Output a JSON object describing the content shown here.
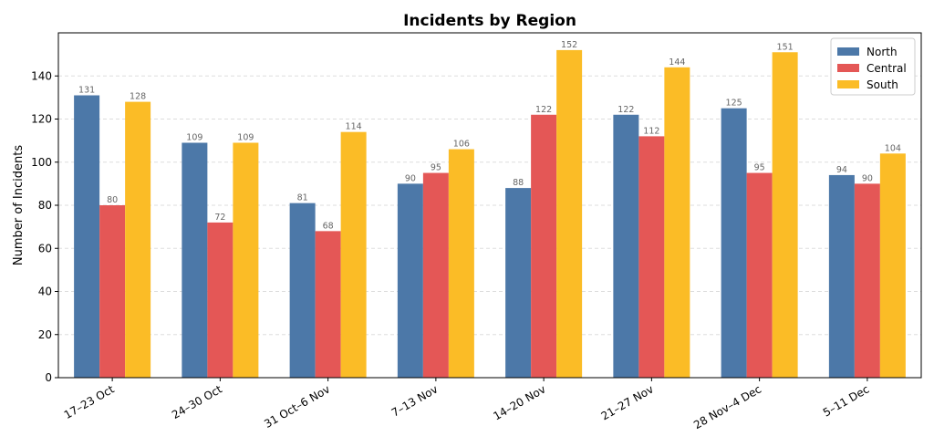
{
  "chart_data": {
    "type": "bar",
    "title": "Incidents by Region",
    "xlabel": "",
    "ylabel": "Number of Incidents",
    "categories": [
      "17–23 Oct",
      "24–30 Oct",
      "31 Oct–6 Nov",
      "7–13 Nov",
      "14–20 Nov",
      "21–27 Nov",
      "28 Nov–4 Dec",
      "5–11 Dec"
    ],
    "series": [
      {
        "name": "North",
        "color": "#4c78a8",
        "values": [
          131,
          109,
          81,
          90,
          88,
          122,
          125,
          94
        ]
      },
      {
        "name": "Central",
        "color": "#e45756",
        "values": [
          80,
          72,
          68,
          95,
          122,
          112,
          95,
          90
        ]
      },
      {
        "name": "South",
        "color": "#fbbc26",
        "values": [
          128,
          109,
          114,
          106,
          152,
          144,
          151,
          104
        ]
      }
    ],
    "ylim": [
      0,
      160
    ],
    "yticks": [
      0,
      20,
      40,
      60,
      80,
      100,
      120,
      140
    ],
    "grid": "y-dashed",
    "legend_position": "top-right",
    "data_labels": true
  }
}
